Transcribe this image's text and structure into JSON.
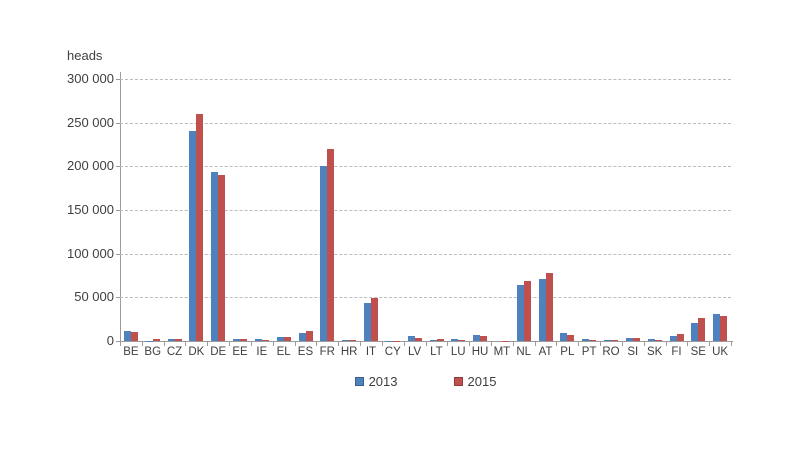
{
  "chart_data": {
    "type": "bar",
    "title": "",
    "ylabel": "heads",
    "xlabel": "",
    "categories": [
      "BE",
      "BG",
      "CZ",
      "DK",
      "DE",
      "EE",
      "IE",
      "EL",
      "ES",
      "FR",
      "HR",
      "IT",
      "CY",
      "LV",
      "LT",
      "LU",
      "HU",
      "MT",
      "NL",
      "AT",
      "PL",
      "PT",
      "RO",
      "SI",
      "SK",
      "FI",
      "SE",
      "UK"
    ],
    "series": [
      {
        "name": "2013",
        "color": "#4F81BD",
        "values": [
          12000,
          500,
          2500,
          240000,
          193000,
          2500,
          2000,
          5000,
          9000,
          200000,
          1000,
          43000,
          200,
          5500,
          1500,
          2000,
          6500,
          0,
          64000,
          71000,
          9500,
          2000,
          1000,
          3000,
          2000,
          6000,
          21000,
          31000
        ]
      },
      {
        "name": "2015",
        "color": "#C0504D",
        "values": [
          10000,
          2000,
          2000,
          260000,
          190000,
          2000,
          1500,
          4500,
          12000,
          220000,
          1000,
          49000,
          200,
          3000,
          2000,
          1500,
          5500,
          200,
          69000,
          78000,
          6500,
          1500,
          1500,
          4000,
          1200,
          8500,
          26500,
          29000
        ]
      }
    ],
    "ylim": [
      0,
      300000
    ],
    "ytick_step": 50000,
    "ytick_labels": [
      "0",
      "50 000",
      "100 000",
      "150 000",
      "200 000",
      "250 000",
      "300 000"
    ],
    "grid": "horizontal-dashed",
    "legend_position": "bottom-center",
    "colors": {
      "background": "#ffffff",
      "gridline": "#bcbcbc",
      "axis": "#9b9b9b",
      "text": "#3f3f3f",
      "series_2013": "#4F81BD",
      "series_2015": "#C0504D"
    }
  }
}
